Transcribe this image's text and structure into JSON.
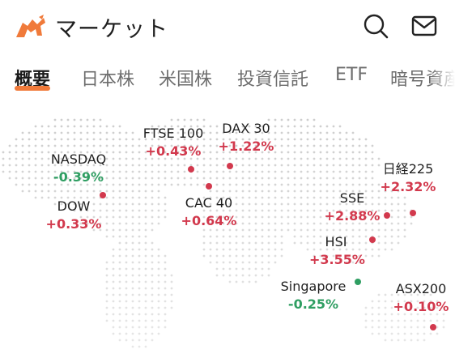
{
  "header": {
    "title": "マーケット",
    "logo_icon": "bull-logo-icon",
    "search_icon": "search-icon",
    "mail_icon": "mail-icon",
    "brand_color": "#f07a3a"
  },
  "tabs": [
    {
      "label": "概要",
      "active": true
    },
    {
      "label": "日本株",
      "active": false
    },
    {
      "label": "米国株",
      "active": false
    },
    {
      "label": "投資信託",
      "active": false
    },
    {
      "label": "ETF",
      "active": false
    },
    {
      "label": "暗号資産",
      "active": false
    }
  ],
  "colors": {
    "up": "#d2394d",
    "down": "#2f9e62"
  },
  "markets": [
    {
      "name": "NASDAQ",
      "change": "-0.39%",
      "direction": "down"
    },
    {
      "name": "DOW",
      "change": "+0.33%",
      "direction": "up"
    },
    {
      "name": "FTSE 100",
      "change": "+0.43%",
      "direction": "up"
    },
    {
      "name": "DAX 30",
      "change": "+1.22%",
      "direction": "up"
    },
    {
      "name": "CAC 40",
      "change": "+0.64%",
      "direction": "up"
    },
    {
      "name": "日経225",
      "change": "+2.32%",
      "direction": "up"
    },
    {
      "name": "SSE",
      "change": "+2.88%",
      "direction": "up"
    },
    {
      "name": "HSI",
      "change": "+3.55%",
      "direction": "up"
    },
    {
      "name": "Singapore",
      "change": "-0.25%",
      "direction": "down"
    },
    {
      "name": "ASX200",
      "change": "+0.10%",
      "direction": "up"
    }
  ]
}
